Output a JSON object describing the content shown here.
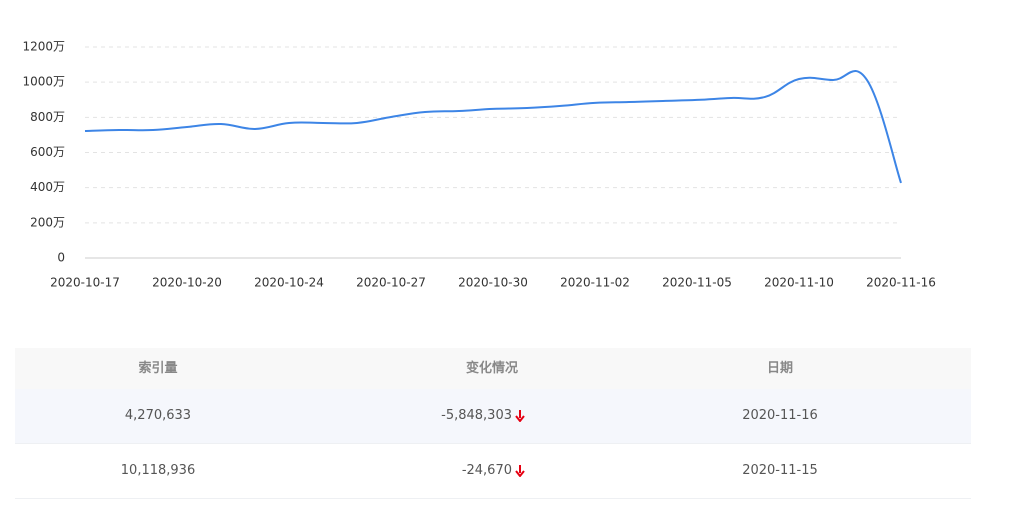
{
  "chart_data": {
    "type": "line",
    "categories": [
      "2020-10-17",
      null,
      null,
      "2020-10-20",
      null,
      null,
      "2020-10-24",
      null,
      null,
      "2020-10-27",
      null,
      null,
      "2020-10-30",
      null,
      null,
      "2020-11-02",
      null,
      null,
      "2020-11-05",
      null,
      null,
      "2020-11-10",
      null,
      null,
      "2020-11-16"
    ],
    "series": [
      {
        "color": "#3d85e6",
        "values": [
          722,
          728,
          728,
          745,
          762,
          734,
          768,
          768,
          768,
          802,
          830,
          836,
          848,
          853,
          865,
          882,
          887,
          893,
          899,
          910,
          916,
          1018,
          1012,
          1011.8936,
          427.0633
        ]
      }
    ],
    "ylim": [
      0,
      1200
    ],
    "yticks": [
      0,
      {
        "value": 200,
        "label": "200万"
      },
      {
        "value": 400,
        "label": "400万"
      },
      {
        "value": 600,
        "label": "600万"
      },
      {
        "value": 800,
        "label": "800万"
      },
      {
        "value": 1000,
        "label": "1000万"
      },
      {
        "value": 1200,
        "label": "1200万"
      }
    ],
    "grid": true
  },
  "table": {
    "headers": [
      "索引量",
      "变化情况",
      "日期"
    ],
    "rows": [
      [
        "4,270,633",
        "-5,848,303",
        "2020-11-16"
      ],
      [
        "10,118,936",
        "-24,670",
        "2020-11-15"
      ]
    ]
  }
}
